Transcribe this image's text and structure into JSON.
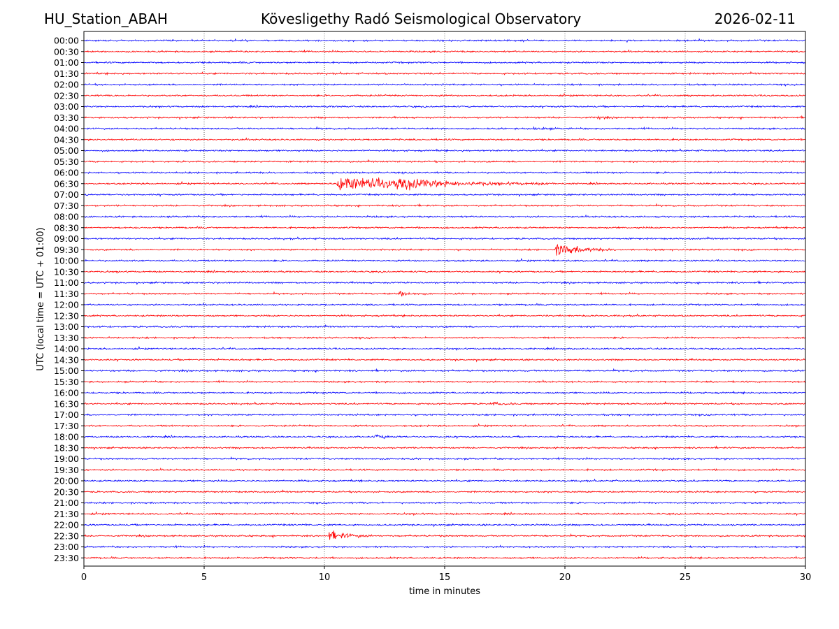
{
  "header": {
    "station": "HU_Station_ABAH",
    "observatory": "Kövesligethy Radó Seismological Observatory",
    "date": "2026-02-11"
  },
  "chart_data": {
    "type": "line",
    "title": "Kövesligethy Radó Seismological Observatory",
    "xlabel": "time in minutes",
    "ylabel": "UTC (local time = UTC + 01:00)",
    "xlim": [
      0,
      30
    ],
    "xticks": [
      0,
      5,
      10,
      15,
      20,
      25,
      30
    ],
    "grid": "vertical dotted at x ticks",
    "row_labels": [
      "00:00",
      "00:30",
      "01:00",
      "01:30",
      "02:00",
      "02:30",
      "03:00",
      "03:30",
      "04:00",
      "04:30",
      "05:00",
      "05:30",
      "06:00",
      "06:30",
      "07:00",
      "07:30",
      "08:00",
      "08:30",
      "09:00",
      "09:30",
      "10:00",
      "10:30",
      "11:00",
      "11:30",
      "12:00",
      "12:30",
      "13:00",
      "13:30",
      "14:00",
      "14:30",
      "15:00",
      "15:30",
      "16:00",
      "16:30",
      "17:00",
      "17:30",
      "18:00",
      "18:30",
      "19:00",
      "19:30",
      "20:00",
      "20:30",
      "21:00",
      "21:30",
      "22:00",
      "22:30",
      "23:00",
      "23:30"
    ],
    "trace_colors": [
      "#0000ff",
      "#ff0000"
    ],
    "events": [
      {
        "row": "03:30",
        "start_min": 21.3,
        "duration_min": 0.6,
        "amplitude": 0.5
      },
      {
        "row": "04:00",
        "start_min": 18.7,
        "duration_min": 1.0,
        "amplitude": 0.35
      },
      {
        "row": "06:30",
        "start_min": 10.5,
        "duration_min": 9.0,
        "amplitude": 1.5
      },
      {
        "row": "06:30",
        "start_min": 13.0,
        "duration_min": 3.5,
        "amplitude": 0.8
      },
      {
        "row": "09:30",
        "start_min": 19.6,
        "duration_min": 2.5,
        "amplitude": 1.3
      },
      {
        "row": "11:30",
        "start_min": 13.1,
        "duration_min": 1.2,
        "amplitude": 0.6
      },
      {
        "row": "16:30",
        "start_min": 16.9,
        "duration_min": 1.6,
        "amplitude": 0.25
      },
      {
        "row": "18:00",
        "start_min": 12.1,
        "duration_min": 1.2,
        "amplitude": 0.4
      },
      {
        "row": "22:30",
        "start_min": 10.2,
        "duration_min": 1.8,
        "amplitude": 1.1
      }
    ]
  }
}
